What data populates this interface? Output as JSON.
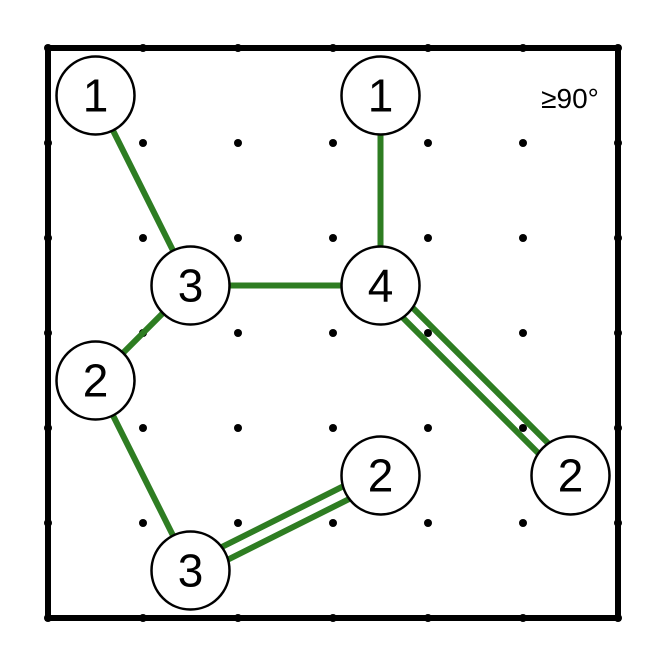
{
  "puzzle": {
    "rule_text": "≥90°",
    "grid_size": 6,
    "bridge_color": "#2e7d22",
    "islands": [
      {
        "id": "a",
        "col": 0.5,
        "row": 0.5,
        "clue": "1"
      },
      {
        "id": "b",
        "col": 3.5,
        "row": 0.5,
        "clue": "1"
      },
      {
        "id": "c",
        "col": 1.5,
        "row": 2.5,
        "clue": "3"
      },
      {
        "id": "d",
        "col": 3.5,
        "row": 2.5,
        "clue": "4"
      },
      {
        "id": "e",
        "col": 0.5,
        "row": 3.5,
        "clue": "2"
      },
      {
        "id": "f",
        "col": 3.5,
        "row": 4.5,
        "clue": "2"
      },
      {
        "id": "g",
        "col": 5.5,
        "row": 4.5,
        "clue": "2"
      },
      {
        "id": "h",
        "col": 1.5,
        "row": 5.5,
        "clue": "3"
      }
    ],
    "bridges": [
      {
        "from": "a",
        "to": "c",
        "count": 1
      },
      {
        "from": "b",
        "to": "d",
        "count": 1
      },
      {
        "from": "c",
        "to": "d",
        "count": 1
      },
      {
        "from": "c",
        "to": "e",
        "count": 1
      },
      {
        "from": "e",
        "to": "h",
        "count": 1
      },
      {
        "from": "d",
        "to": "g",
        "count": 2
      },
      {
        "from": "h",
        "to": "f",
        "count": 2
      }
    ]
  }
}
